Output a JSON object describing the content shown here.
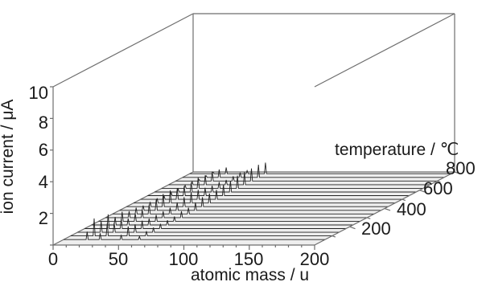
{
  "chart_data": {
    "type": "waterfall-3d",
    "xlabel": "atomic mass / u",
    "ylabel": "ion current / μA",
    "zlabel": "temperature / ℃",
    "x_ticks": [
      "0",
      "50",
      "100",
      "150",
      "200"
    ],
    "y_ticks": [
      "2",
      "4",
      "6",
      "8",
      "10"
    ],
    "z_ticks": [
      "200",
      "400",
      "600",
      "800"
    ],
    "xlim": [
      0,
      200
    ],
    "ylim": [
      0,
      10
    ],
    "zlim": [
      0,
      800
    ],
    "grid": false,
    "series_temperatures": [
      60,
      100,
      140,
      180,
      220,
      260,
      300,
      340,
      380,
      420,
      460,
      500,
      540,
      580,
      620,
      660,
      700,
      740,
      780
    ],
    "peaks": [
      {
        "mass": 18,
        "ion_current_by_temperature": [
          0.5,
          1.1,
          0.7,
          0.9,
          0.5,
          0.6,
          0.4,
          0.4,
          0.3,
          0.3,
          0.3,
          0.2,
          0.2,
          0.2,
          0.2,
          0.2,
          0.1,
          0.1,
          0.1
        ]
      },
      {
        "mass": 28,
        "ion_current_by_temperature": [
          0.4,
          0.8,
          0.6,
          0.6,
          0.4,
          0.5,
          0.5,
          0.6,
          0.7,
          0.8,
          0.8,
          0.7,
          0.6,
          0.6,
          0.7,
          0.6,
          0.6,
          0.5,
          0.4
        ]
      },
      {
        "mass": 44,
        "ion_current_by_temperature": [
          0.3,
          0.6,
          0.5,
          0.5,
          0.4,
          0.4,
          0.4,
          0.4,
          0.5,
          0.6,
          0.7,
          0.6,
          0.5,
          0.4,
          0.4,
          0.3,
          0.3,
          0.3,
          0.2
        ]
      },
      {
        "mass": 58,
        "ion_current_by_temperature": [
          0.2,
          0.3,
          0.3,
          0.3,
          0.3,
          0.3,
          0.4,
          0.4,
          0.5,
          0.6,
          0.6,
          0.6,
          0.7,
          0.7,
          0.8,
          0.8,
          0.8,
          0.8,
          0.7
        ]
      }
    ]
  }
}
